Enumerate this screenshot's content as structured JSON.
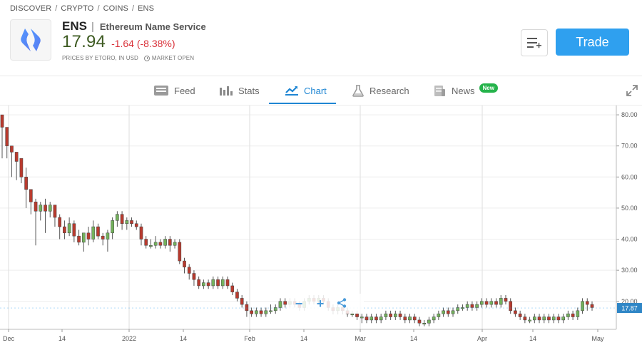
{
  "breadcrumb": {
    "items": [
      "DISCOVER",
      "CRYPTO",
      "COINS",
      "ENS"
    ],
    "sep": "/"
  },
  "header": {
    "ticker": "ENS",
    "ticker_sep": "|",
    "fullname": "Ethereum Name Service",
    "price": "17.94",
    "change": "-1.64 (-8.38%)",
    "prices_by": "PRICES BY ETORO, IN USD",
    "market_status": "MARKET OPEN",
    "trade_label": "Trade",
    "price_color": "#3e5b22",
    "change_color": "#d9323a",
    "accent": "#2fa0ef"
  },
  "tabs": [
    {
      "label": "Feed",
      "icon": "feed-icon"
    },
    {
      "label": "Stats",
      "icon": "stats-icon"
    },
    {
      "label": "Chart",
      "icon": "chart-icon",
      "active": true
    },
    {
      "label": "Research",
      "icon": "flask-icon"
    },
    {
      "label": "News",
      "icon": "news-icon",
      "badge": "New"
    }
  ],
  "chart_data": {
    "type": "candlestick",
    "yticks": [
      "80.00",
      "70.00",
      "60.00",
      "50.00",
      "40.00",
      "30.00",
      "20.00"
    ],
    "ylim": [
      11,
      83
    ],
    "xlabels": [
      "Dec",
      "14",
      "2022",
      "14",
      "Feb",
      "14",
      "Mar",
      "14",
      "Apr",
      "14",
      "May"
    ],
    "current_price_label": "17.87",
    "up_color": "#73b15c",
    "down_color": "#b83a2e",
    "candles": [
      [
        80,
        76,
        80,
        66
      ],
      [
        76,
        70,
        74,
        66
      ],
      [
        70,
        68,
        70,
        60
      ],
      [
        68,
        65,
        68,
        59
      ],
      [
        66,
        60,
        64,
        58
      ],
      [
        60,
        56,
        63,
        50
      ],
      [
        56,
        52,
        56,
        48
      ],
      [
        52,
        49,
        53,
        38
      ],
      [
        49,
        51,
        52,
        46
      ],
      [
        51,
        49,
        53,
        42
      ],
      [
        49,
        51,
        52,
        47
      ],
      [
        51,
        47,
        51,
        44
      ],
      [
        47,
        44,
        48,
        40
      ],
      [
        44,
        42,
        46,
        40
      ],
      [
        42,
        45,
        47,
        41
      ],
      [
        45,
        41,
        46,
        39
      ],
      [
        41,
        39,
        43,
        38
      ],
      [
        39,
        42,
        42,
        36
      ],
      [
        42,
        40,
        44,
        38
      ],
      [
        40,
        44,
        46,
        39
      ],
      [
        44,
        41,
        45,
        40
      ],
      [
        41,
        40,
        42,
        38
      ],
      [
        40,
        42,
        43,
        36
      ],
      [
        42,
        46,
        47,
        40
      ],
      [
        46,
        48,
        49,
        44
      ],
      [
        48,
        45,
        49,
        43
      ],
      [
        45,
        46,
        47,
        43
      ],
      [
        46,
        45,
        47,
        44
      ],
      [
        45,
        44,
        46,
        43
      ],
      [
        44,
        40,
        45,
        38
      ],
      [
        40,
        38,
        41,
        37
      ],
      [
        38,
        38,
        40,
        37
      ],
      [
        38,
        39,
        41,
        37
      ],
      [
        39,
        38,
        40,
        37
      ],
      [
        38,
        40,
        41,
        37
      ],
      [
        40,
        38,
        41,
        36
      ],
      [
        38,
        39,
        40,
        37
      ],
      [
        39,
        33,
        40,
        32
      ],
      [
        33,
        31,
        34,
        29
      ],
      [
        31,
        29,
        32,
        27
      ],
      [
        29,
        27,
        30,
        25
      ],
      [
        27,
        25,
        28,
        24
      ],
      [
        25,
        26,
        27,
        24
      ],
      [
        26,
        25,
        27,
        24
      ],
      [
        25,
        27,
        28,
        24
      ],
      [
        27,
        25,
        28,
        24
      ],
      [
        25,
        27,
        28,
        24
      ],
      [
        27,
        25,
        28,
        24
      ],
      [
        25,
        23,
        26,
        22
      ],
      [
        23,
        21,
        24,
        20
      ],
      [
        21,
        19,
        22,
        18
      ],
      [
        19,
        17,
        20,
        15
      ],
      [
        17,
        16,
        18,
        15
      ],
      [
        16,
        17,
        18,
        15
      ],
      [
        17,
        16,
        18,
        15
      ],
      [
        16,
        17,
        18,
        15
      ],
      [
        17,
        17,
        19,
        16
      ],
      [
        17,
        18,
        19,
        16
      ],
      [
        18,
        20,
        21,
        17
      ],
      [
        20,
        19,
        21,
        18
      ],
      [
        19,
        20,
        21,
        18
      ],
      [
        20,
        19,
        21,
        18
      ],
      [
        19,
        18,
        20,
        17
      ],
      [
        18,
        20,
        21,
        17
      ],
      [
        20,
        21,
        22,
        19
      ],
      [
        21,
        20,
        22,
        19
      ],
      [
        20,
        21,
        22,
        19
      ],
      [
        21,
        20,
        22,
        19
      ],
      [
        20,
        18,
        21,
        17
      ],
      [
        18,
        17,
        19,
        16
      ],
      [
        17,
        18,
        19,
        16
      ],
      [
        18,
        17,
        19,
        16
      ],
      [
        17,
        16,
        18,
        15
      ],
      [
        16,
        16,
        17,
        15
      ],
      [
        16,
        15,
        17,
        14
      ],
      [
        15,
        15,
        16,
        13
      ],
      [
        15,
        14,
        16,
        13
      ],
      [
        14,
        15,
        16,
        13
      ],
      [
        15,
        14,
        16,
        13
      ],
      [
        14,
        15,
        16,
        13
      ],
      [
        15,
        16,
        17,
        14
      ],
      [
        16,
        15,
        17,
        14
      ],
      [
        15,
        16,
        17,
        14
      ],
      [
        16,
        15,
        17,
        14
      ],
      [
        15,
        14,
        16,
        13
      ],
      [
        14,
        15,
        16,
        13
      ],
      [
        15,
        14,
        16,
        13
      ],
      [
        14,
        13,
        15,
        12
      ],
      [
        13,
        13,
        14,
        12
      ],
      [
        13,
        14,
        15,
        12
      ],
      [
        14,
        15,
        16,
        13
      ],
      [
        15,
        16,
        17,
        14
      ],
      [
        16,
        17,
        18,
        15
      ],
      [
        17,
        16,
        18,
        15
      ],
      [
        16,
        17,
        18,
        15
      ],
      [
        17,
        18,
        19,
        16
      ],
      [
        18,
        18,
        19,
        17
      ],
      [
        18,
        19,
        20,
        17
      ],
      [
        19,
        18,
        20,
        17
      ],
      [
        18,
        19,
        20,
        17
      ],
      [
        19,
        20,
        21,
        18
      ],
      [
        20,
        19,
        21,
        18
      ],
      [
        19,
        20,
        21,
        18
      ],
      [
        20,
        19,
        21,
        18
      ],
      [
        19,
        21,
        22,
        18
      ],
      [
        21,
        20,
        22,
        19
      ],
      [
        20,
        17,
        21,
        16
      ],
      [
        17,
        16,
        18,
        15
      ],
      [
        16,
        15,
        17,
        14
      ],
      [
        15,
        14,
        16,
        13
      ],
      [
        14,
        14,
        15,
        13
      ],
      [
        14,
        15,
        16,
        13
      ],
      [
        15,
        14,
        16,
        13
      ],
      [
        14,
        15,
        16,
        13
      ],
      [
        15,
        14,
        16,
        13
      ],
      [
        14,
        15,
        16,
        13
      ],
      [
        15,
        14,
        16,
        13
      ],
      [
        14,
        15,
        16,
        13
      ],
      [
        15,
        16,
        17,
        14
      ],
      [
        16,
        15,
        17,
        14
      ],
      [
        15,
        17,
        18,
        14
      ],
      [
        17,
        20,
        21,
        16
      ],
      [
        20,
        19,
        21,
        17
      ],
      [
        19,
        18,
        20,
        17
      ]
    ]
  }
}
